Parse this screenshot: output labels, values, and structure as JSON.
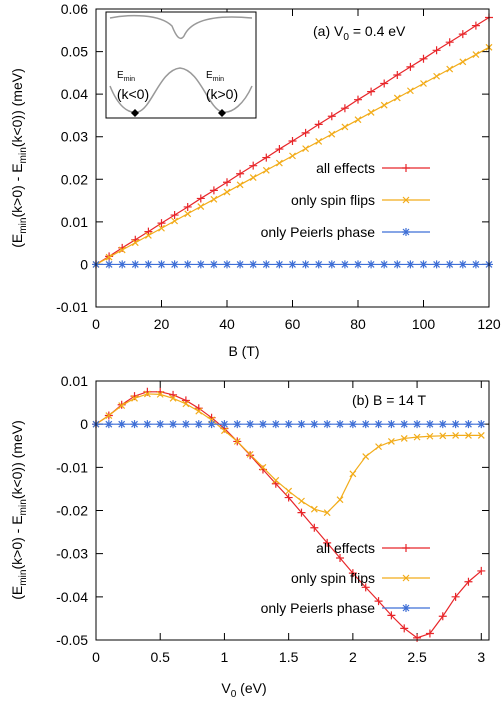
{
  "chart_data": [
    {
      "type": "line",
      "annotation": [
        "(a) V",
        "0",
        " = 0.4 eV"
      ],
      "x_label": [
        "B (T)"
      ],
      "y_label": [
        "(E",
        "min",
        "(k>0) - E",
        "min",
        "(k<0)) (meV)"
      ],
      "xlim": [
        0,
        120
      ],
      "ylim": [
        -0.01,
        0.06
      ],
      "xticks": [
        0,
        20,
        40,
        60,
        80,
        100,
        120
      ],
      "yticks": [
        -0.01,
        0,
        0.01,
        0.02,
        0.03,
        0.04,
        0.05,
        0.06
      ],
      "x": [
        0,
        4,
        8,
        12,
        16,
        20,
        24,
        28,
        32,
        36,
        40,
        44,
        48,
        52,
        56,
        60,
        64,
        68,
        72,
        76,
        80,
        84,
        88,
        92,
        96,
        100,
        104,
        108,
        112,
        116,
        120
      ],
      "series": [
        {
          "name": "all effects",
          "color": "#e8262a",
          "marker": "plus",
          "values": [
            0,
            0.0019,
            0.0039,
            0.0058,
            0.0077,
            0.0097,
            0.0116,
            0.0135,
            0.0155,
            0.0174,
            0.0193,
            0.0213,
            0.0232,
            0.0251,
            0.0271,
            0.029,
            0.0309,
            0.0329,
            0.0348,
            0.0367,
            0.0387,
            0.0406,
            0.0425,
            0.0445,
            0.0464,
            0.0483,
            0.0503,
            0.0522,
            0.0541,
            0.0561,
            0.058
          ]
        },
        {
          "name": "only spin flips",
          "color": "#f2ac1a",
          "marker": "cross",
          "values": [
            0,
            0.0017,
            0.0034,
            0.0051,
            0.0068,
            0.0085,
            0.0102,
            0.0119,
            0.0136,
            0.0153,
            0.017,
            0.0187,
            0.0204,
            0.0221,
            0.0238,
            0.0255,
            0.0272,
            0.0289,
            0.0306,
            0.0323,
            0.034,
            0.0357,
            0.0374,
            0.0391,
            0.0408,
            0.0425,
            0.0442,
            0.0459,
            0.0476,
            0.0493,
            0.051
          ]
        },
        {
          "name": "only Peierls phase",
          "color": "#3f6fd6",
          "marker": "star",
          "values": [
            0,
            0,
            0,
            0,
            0,
            0,
            0,
            0,
            0,
            0,
            0,
            0,
            0,
            0,
            0,
            0,
            0,
            0,
            0,
            0,
            0,
            0,
            0,
            0,
            0,
            0,
            0,
            0,
            0,
            0,
            0
          ]
        }
      ],
      "inset": {
        "labels": [
          {
            "main": "E",
            "sub": "min",
            "note": "(k<0)"
          },
          {
            "main": "E",
            "sub": "min",
            "note": "(k>0)"
          }
        ]
      }
    },
    {
      "type": "line",
      "annotation": [
        "(b) B = 14 T"
      ],
      "x_label": [
        "V",
        "0",
        " (eV)"
      ],
      "y_label": [
        "(E",
        "min",
        "(k>0) - E",
        "min",
        "(k<0)) (meV)"
      ],
      "xlim": [
        0,
        3.06
      ],
      "ylim": [
        -0.05,
        0.01
      ],
      "xticks": [
        0,
        0.5,
        1,
        1.5,
        2,
        2.5,
        3
      ],
      "yticks": [
        -0.05,
        -0.04,
        -0.03,
        -0.02,
        -0.01,
        0,
        0.01
      ],
      "x": [
        0,
        0.1,
        0.2,
        0.3,
        0.4,
        0.5,
        0.6,
        0.7,
        0.8,
        0.9,
        1,
        1.1,
        1.2,
        1.3,
        1.4,
        1.5,
        1.6,
        1.7,
        1.8,
        1.9,
        2,
        2.1,
        2.2,
        2.3,
        2.4,
        2.5,
        2.6,
        2.7,
        2.8,
        2.9,
        3
      ],
      "series": [
        {
          "name": "all effects",
          "color": "#e8262a",
          "marker": "plus",
          "values": [
            0,
            0.002,
            0.0045,
            0.0065,
            0.0075,
            0.0075,
            0.0068,
            0.0055,
            0.0037,
            0.0015,
            -0.001,
            -0.004,
            -0.0072,
            -0.0105,
            -0.0138,
            -0.017,
            -0.0205,
            -0.024,
            -0.0275,
            -0.031,
            -0.0345,
            -0.0378,
            -0.041,
            -0.0443,
            -0.0473,
            -0.0495,
            -0.0485,
            -0.0445,
            -0.04,
            -0.0365,
            -0.034
          ]
        },
        {
          "name": "only spin flips",
          "color": "#f2ac1a",
          "marker": "cross",
          "values": [
            0,
            0.002,
            0.0043,
            0.006,
            0.007,
            0.0069,
            0.006,
            0.0047,
            0.003,
            0.001,
            -0.0015,
            -0.004,
            -0.007,
            -0.01,
            -0.013,
            -0.0155,
            -0.0178,
            -0.0197,
            -0.0205,
            -0.0175,
            -0.0115,
            -0.0075,
            -0.0052,
            -0.004,
            -0.0033,
            -0.003,
            -0.0028,
            -0.0027,
            -0.0026,
            -0.0026,
            -0.0026
          ]
        },
        {
          "name": "only Peierls phase",
          "color": "#3f6fd6",
          "marker": "star",
          "values": [
            0,
            0,
            0,
            0,
            0,
            0,
            0,
            0,
            0,
            0,
            0,
            0,
            0,
            0,
            0,
            0,
            0,
            0,
            0,
            0,
            0,
            0,
            0,
            0,
            0,
            0,
            0,
            0,
            0,
            0,
            0
          ]
        }
      ]
    }
  ]
}
